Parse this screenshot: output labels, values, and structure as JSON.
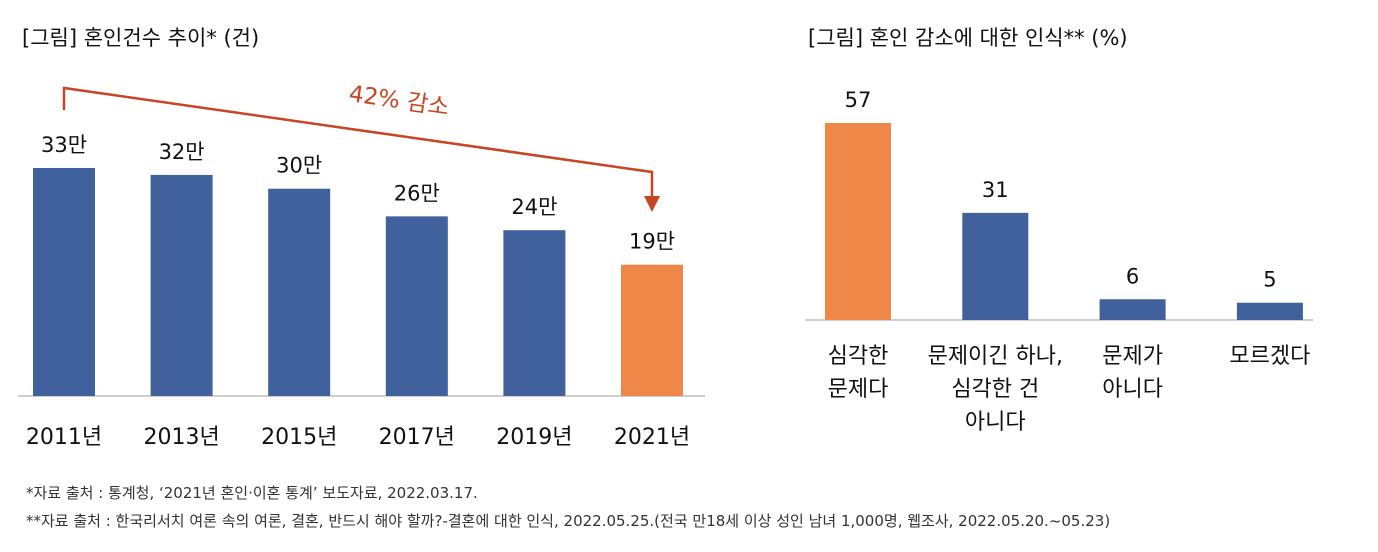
{
  "chart_data": [
    {
      "type": "bar",
      "title": "[그림] 혼인건수 추이* (건)",
      "categories": [
        "2011년",
        "2013년",
        "2015년",
        "2017년",
        "2019년",
        "2021년"
      ],
      "values": [
        33,
        32,
        30,
        26,
        24,
        19
      ],
      "value_labels": [
        "33만",
        "32만",
        "30만",
        "26만",
        "24만",
        "19만"
      ],
      "highlight_index": 5,
      "colors": {
        "default": "#41619c",
        "highlight": "#ef8748",
        "annotation": "#c74424"
      },
      "annotation": {
        "text": "42% 감소",
        "from_index": 0,
        "to_index": 5
      },
      "ylim": [
        0,
        33
      ]
    },
    {
      "type": "bar",
      "title": "[그림] 혼인 감소에 대한 인식** (%)",
      "categories": [
        [
          "심각한",
          "문제다"
        ],
        [
          "문제이긴 하나,",
          "심각한 건",
          "아니다"
        ],
        [
          "문제가",
          "아니다"
        ],
        [
          "모르겠다"
        ]
      ],
      "values": [
        57,
        31,
        6,
        5
      ],
      "value_labels": [
        "57",
        "31",
        "6",
        "5"
      ],
      "highlight_index": 0,
      "colors": {
        "default": "#41619c",
        "highlight": "#ef8748"
      },
      "ylim": [
        0,
        57
      ]
    }
  ],
  "sources": [
    "*자료 출처 : 통계청, ‘2021년 혼인·이혼 통계’ 보도자료, 2022.03.17.",
    "**자료 출처 : 한국리서치 여론 속의 여론, 결혼, 반드시 해야 할까?-결혼에 대한 인식, 2022.05.25.(전국 만18세 이상 성인 남녀 1,000명, 웹조사, 2022.05.20.~05.23)"
  ]
}
